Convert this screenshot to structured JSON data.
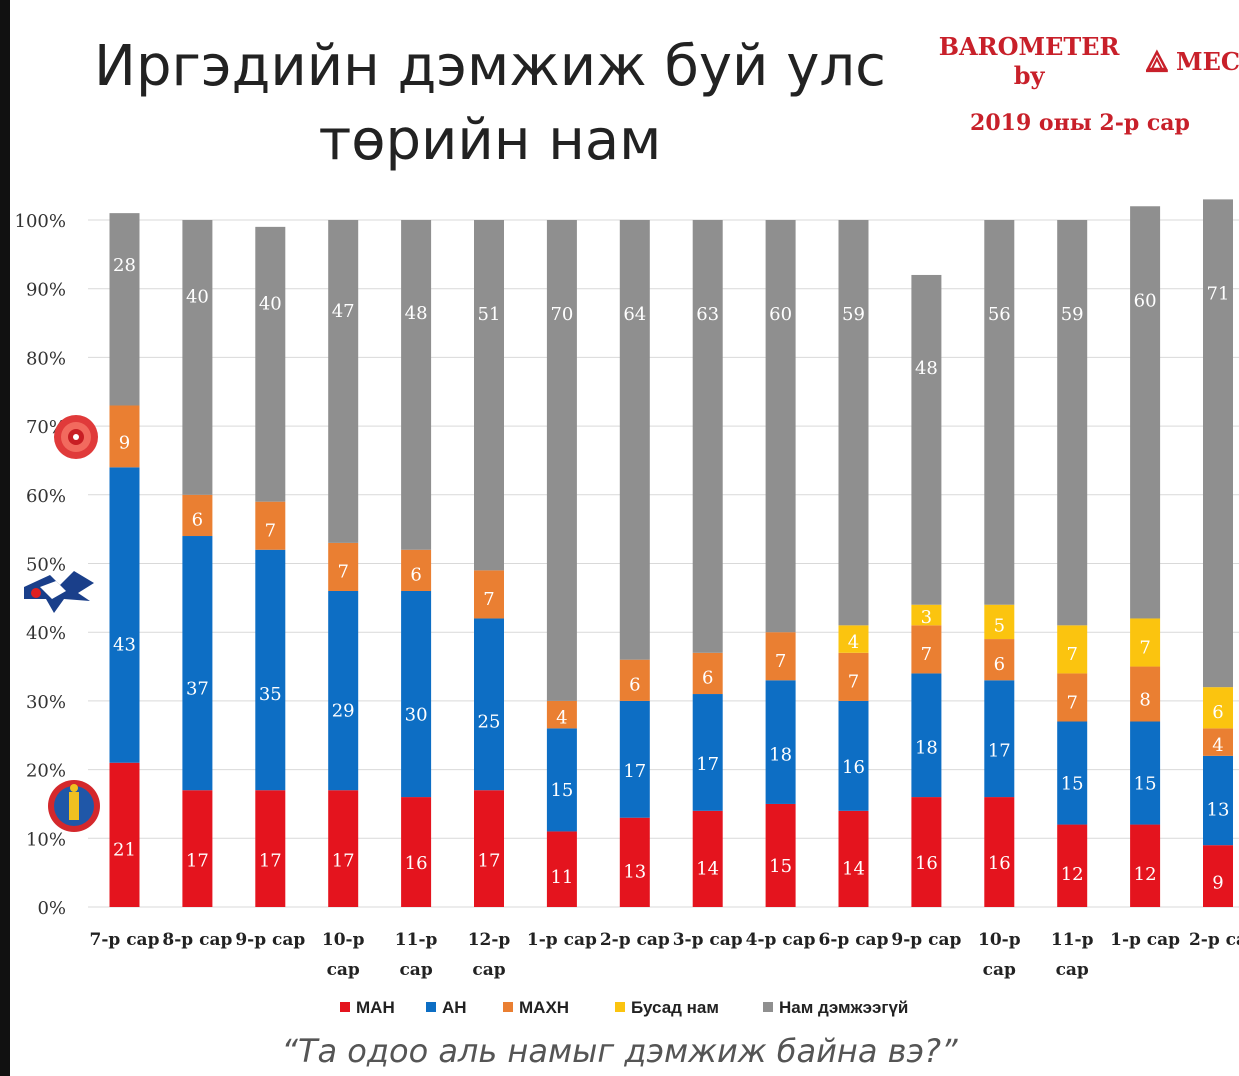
{
  "title": "Иргэдийн дэмжиж буй улс төрийн нам",
  "title_line1": "Иргэдийн дэмжиж буй улс",
  "title_line2": "төрийн нам",
  "brand": {
    "name_part1": "BAROMETER by",
    "name_part2": "MEC",
    "subtitle": "2019 оны 2-р сар",
    "color": "#c8202a"
  },
  "question": "“Та одоо аль намыг дэмжиж байна вэ?”",
  "chart_data": {
    "type": "bar",
    "stacked": true,
    "categories": [
      "7-р сар",
      "8-р сар",
      "9-р сар",
      "10-р сар",
      "11-р сар",
      "12-р сар",
      "1-р сар",
      "2-р сар",
      "3-р сар",
      "4-р сар",
      "6-р сар",
      "9-р сар",
      "10-р сар",
      "11-р сар",
      "1-р сар",
      "2-р са"
    ],
    "y_ticks": [
      "0%",
      "10%",
      "20%",
      "30%",
      "40%",
      "50%",
      "60%",
      "70%",
      "80%",
      "90%",
      "100%"
    ],
    "ylim": [
      0,
      100
    ],
    "grid": true,
    "legend_position": "bottom",
    "series": [
      {
        "name": "МАН",
        "color": "#e4141e",
        "values": [
          21,
          17,
          17,
          17,
          16,
          17,
          11,
          13,
          14,
          15,
          14,
          16,
          16,
          12,
          12,
          9
        ]
      },
      {
        "name": "АН",
        "color": "#0d6ec4",
        "values": [
          43,
          37,
          35,
          29,
          30,
          25,
          15,
          17,
          17,
          18,
          16,
          18,
          17,
          15,
          15,
          13
        ]
      },
      {
        "name": "МАХН",
        "color": "#ea7f32",
        "values": [
          9,
          6,
          7,
          7,
          6,
          7,
          4,
          6,
          6,
          7,
          7,
          7,
          6,
          7,
          8,
          4
        ]
      },
      {
        "name": "Бусад нам",
        "color": "#fbc40f",
        "values": [
          null,
          null,
          null,
          null,
          null,
          null,
          null,
          null,
          null,
          null,
          4,
          3,
          5,
          7,
          7,
          6
        ]
      },
      {
        "name": "Нам дэмжээгүй",
        "color": "#8f8f8f",
        "values": [
          28,
          40,
          40,
          47,
          48,
          51,
          70,
          64,
          63,
          60,
          59,
          48,
          56,
          59,
          60,
          71
        ]
      }
    ]
  },
  "icons": [
    "rose-emblem-icon",
    "eagle-emblem-icon",
    "soyombo-emblem-icon",
    "mec-logo-icon"
  ]
}
